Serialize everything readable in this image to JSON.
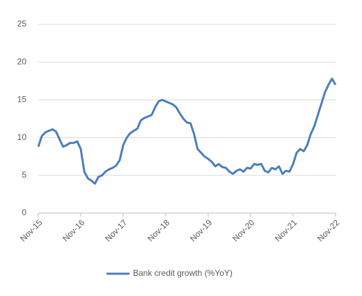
{
  "chart_data": {
    "type": "line",
    "categories": [
      "Nov-15",
      null,
      null,
      null,
      null,
      null,
      null,
      null,
      null,
      null,
      null,
      null,
      "Nov-16",
      null,
      null,
      null,
      null,
      null,
      null,
      null,
      null,
      null,
      null,
      null,
      "Nov-17",
      null,
      null,
      null,
      null,
      null,
      null,
      null,
      null,
      null,
      null,
      null,
      "Nov-18",
      null,
      null,
      null,
      null,
      null,
      null,
      null,
      null,
      null,
      null,
      null,
      "Nov-19",
      null,
      null,
      null,
      null,
      null,
      null,
      null,
      null,
      null,
      null,
      null,
      "Nov-20",
      null,
      null,
      null,
      null,
      null,
      null,
      null,
      null,
      null,
      null,
      null,
      "Nov-21",
      null,
      null,
      null,
      null,
      null,
      null,
      null,
      null,
      null,
      null,
      null,
      "Nov-22"
    ],
    "series": [
      {
        "name": "Bank credit growth (%YoY)",
        "color": "#4a7ebb",
        "values": [
          8.8,
          10.2,
          10.7,
          10.9,
          11.1,
          10.8,
          9.8,
          8.8,
          9.0,
          9.3,
          9.3,
          9.5,
          8.5,
          5.5,
          4.6,
          4.3,
          3.9,
          4.8,
          5.0,
          5.5,
          5.8,
          6.0,
          6.3,
          7.0,
          9.0,
          10.0,
          10.6,
          10.9,
          11.2,
          12.3,
          12.6,
          12.8,
          13.0,
          14.0,
          14.8,
          15.0,
          14.8,
          14.6,
          14.4,
          14.0,
          13.2,
          12.5,
          12.0,
          11.9,
          10.5,
          8.5,
          8.0,
          7.5,
          7.2,
          6.8,
          6.2,
          6.5,
          6.1,
          6.0,
          5.5,
          5.2,
          5.6,
          5.8,
          5.5,
          6.0,
          5.9,
          6.5,
          6.4,
          6.5,
          5.6,
          5.4,
          6.0,
          5.8,
          6.2,
          5.2,
          5.6,
          5.5,
          6.5,
          8.0,
          8.5,
          8.2,
          9.0,
          10.5,
          11.5,
          13.0,
          14.5,
          16.0,
          17.0,
          17.8,
          17.0
        ]
      }
    ],
    "ylim": [
      0,
      25
    ],
    "yticks": [
      0,
      5,
      10,
      15,
      20,
      25
    ],
    "grid": true,
    "legend": "bottom"
  }
}
